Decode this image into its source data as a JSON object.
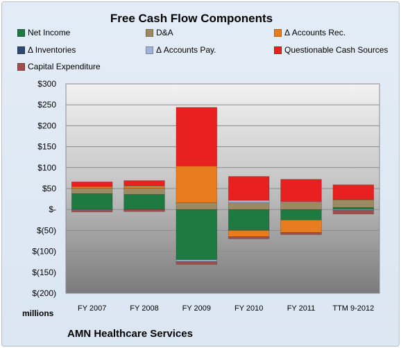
{
  "footer_text": "AMN Healthcare Services",
  "units_label": "millions",
  "colors": {
    "net_income": "#1e7a40",
    "da": "#9c8a62",
    "accounts_rec": "#e87d20",
    "inventories": "#2d4b70",
    "accounts_pay": "#9fb3d6",
    "questionable": "#e8201f",
    "capex": "#a0504c"
  },
  "chart_data": {
    "type": "bar",
    "stacked": true,
    "title": "Free Cash Flow Components",
    "xlabel": "",
    "ylabel": "",
    "ylim": [
      -200,
      300
    ],
    "y_ticks": [
      "$300",
      "$250",
      "$200",
      "$150",
      "$100",
      "$50",
      "$-",
      "$(50)",
      "$(100)",
      "$(150)",
      "$(200)"
    ],
    "y_tick_values": [
      300,
      250,
      200,
      150,
      100,
      50,
      0,
      -50,
      -100,
      -150,
      -200
    ],
    "grid": true,
    "legend_position": "top",
    "categories": [
      "FY 2007",
      "FY 2008",
      "FY 2009",
      "FY 2010",
      "FY 2011",
      "TTM 9-2012"
    ],
    "series": [
      {
        "name": "Net Income",
        "key": "net_income",
        "values": [
          38,
          36,
          -120,
          -50,
          -25,
          5
        ]
      },
      {
        "name": "D&A",
        "key": "da",
        "values": [
          13,
          15,
          16,
          16,
          17,
          18
        ]
      },
      {
        "name": "Δ Accounts Rec.",
        "key": "accounts_rec",
        "values": [
          4,
          5,
          88,
          -15,
          -30,
          1
        ]
      },
      {
        "name": "Δ Inventories",
        "key": "inventories",
        "values": [
          0,
          0,
          0,
          0,
          0,
          0
        ]
      },
      {
        "name": "Δ Accounts Pay.",
        "key": "accounts_pay",
        "values": [
          -1,
          1,
          -4,
          6,
          2,
          -2
        ]
      },
      {
        "name": "Questionable Cash Sources",
        "key": "questionable",
        "values": [
          11,
          12,
          140,
          57,
          53,
          35
        ]
      },
      {
        "name": "Capital Expenditure",
        "key": "capex",
        "values": [
          -5,
          -5,
          -7,
          -5,
          -5,
          -9
        ]
      }
    ]
  }
}
